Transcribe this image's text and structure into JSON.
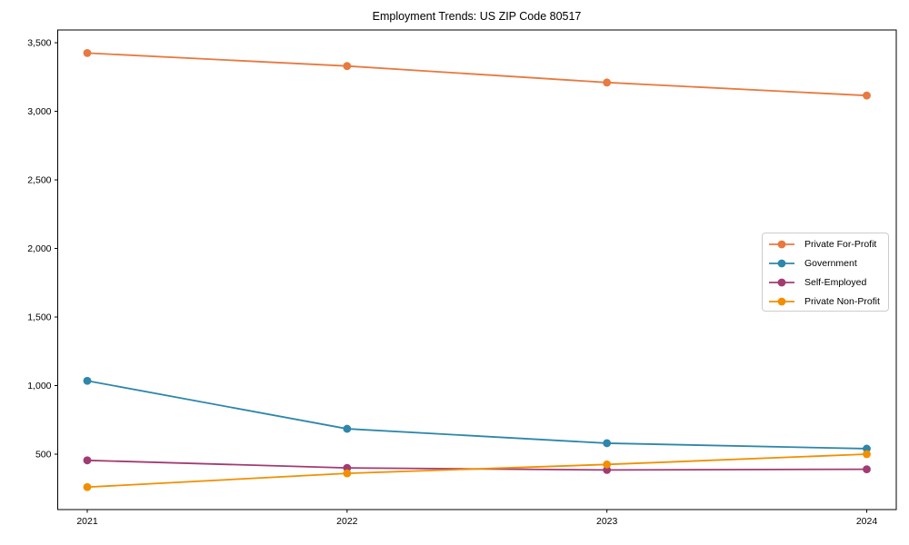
{
  "figure": {
    "title": "Employment Trends: US ZIP Code 80517"
  },
  "chart_data": {
    "type": "line",
    "title": "Employment Trends: US ZIP Code 80517",
    "x_categories": [
      "2021",
      "2022",
      "2023",
      "2024"
    ],
    "series": [
      {
        "name": "Private For-Profit",
        "color": "#E8793F",
        "values": [
          3425,
          3330,
          3210,
          3115
        ]
      },
      {
        "name": "Government",
        "color": "#2E86AB",
        "values": [
          1035,
          685,
          580,
          540
        ]
      },
      {
        "name": "Self-Employed",
        "color": "#A23B72",
        "values": [
          455,
          400,
          385,
          390
        ]
      },
      {
        "name": "Private Non-Profit",
        "color": "#F18F01",
        "values": [
          260,
          360,
          425,
          500
        ]
      }
    ],
    "yticks": [
      500,
      1000,
      1500,
      2000,
      2500,
      3000,
      3500
    ],
    "ytick_labels": [
      "500",
      "1,000",
      "1,500",
      "2,000",
      "2,500",
      "3,000",
      "3,500"
    ],
    "ylim": [
      96,
      3593
    ],
    "xlabel": "",
    "ylabel": "",
    "grid": false,
    "legend_position": "center right",
    "marker": "o",
    "line_width": 1.8,
    "marker_radius": 4.4,
    "axis_color": "#000000",
    "background_color": "#ffffff"
  }
}
